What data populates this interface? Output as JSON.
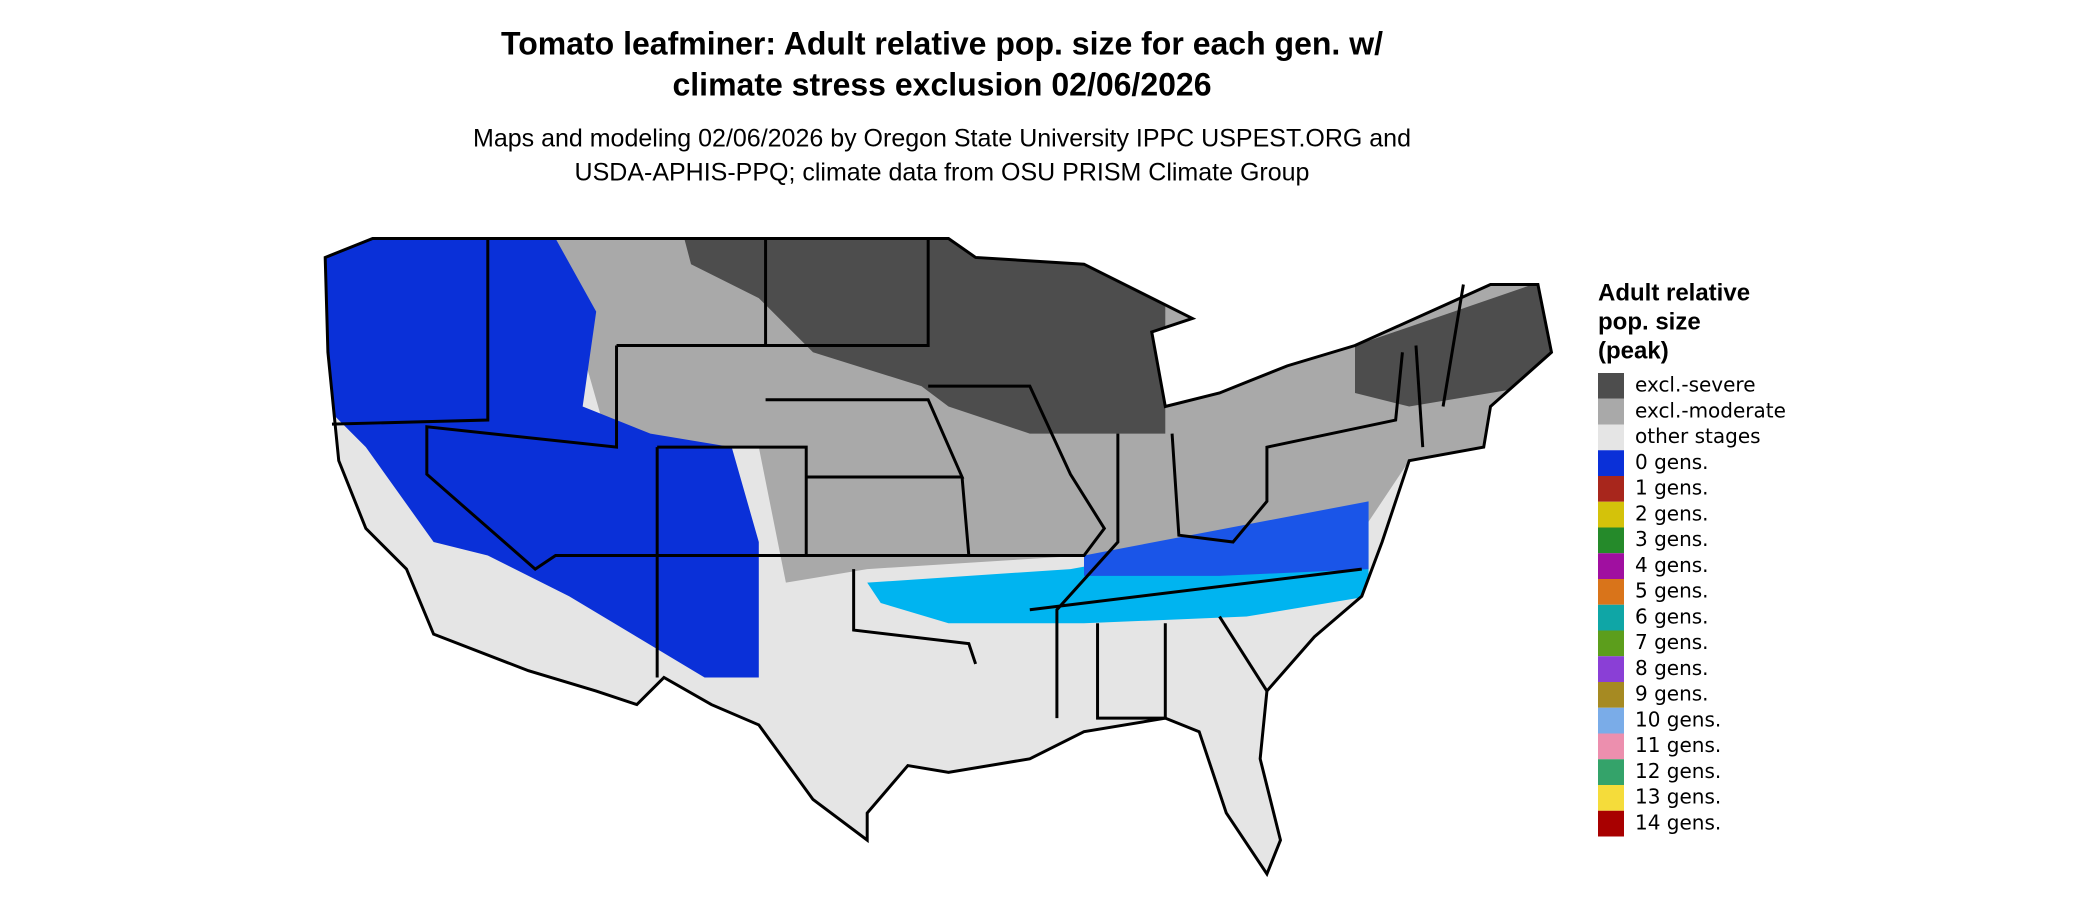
{
  "header": {
    "title": [
      "Tomato leafminer: Adult relative pop. size for each gen. w/",
      "climate stress exclusion 02/06/2026"
    ],
    "subtitle": [
      "Maps and modeling 02/06/2026 by Oregon State University IPPC USPEST.ORG and",
      "USDA-APHIS-PPQ; climate data from OSU PRISM Climate Group"
    ]
  },
  "legend": {
    "title": [
      "Adult relative",
      "pop. size",
      "(peak)"
    ],
    "items": [
      {
        "label": "excl.-severe",
        "color": "#4d4d4d"
      },
      {
        "label": "excl.-moderate",
        "color": "#a9a9a9"
      },
      {
        "label": "other stages",
        "color": "#e5e5e5"
      },
      {
        "label": "0 gens.",
        "color": "#0a30d8"
      },
      {
        "label": "1 gens.",
        "color": "#a8261c"
      },
      {
        "label": "2 gens.",
        "color": "#d4c20a"
      },
      {
        "label": "3 gens.",
        "color": "#258a2a"
      },
      {
        "label": "4 gens.",
        "color": "#a00fa0"
      },
      {
        "label": "5 gens.",
        "color": "#d9741a"
      },
      {
        "label": "6 gens.",
        "color": "#0fa6a6"
      },
      {
        "label": "7 gens.",
        "color": "#5c9e1c"
      },
      {
        "label": "8 gens.",
        "color": "#8a3fd6"
      },
      {
        "label": "9 gens.",
        "color": "#a68a22"
      },
      {
        "label": "10 gens.",
        "color": "#7aace8"
      },
      {
        "label": "11 gens.",
        "color": "#ec8fae"
      },
      {
        "label": "12 gens.",
        "color": "#34a36a"
      },
      {
        "label": "13 gens.",
        "color": "#f5dc3a"
      },
      {
        "label": "14 gens.",
        "color": "#a80000"
      }
    ]
  }
}
